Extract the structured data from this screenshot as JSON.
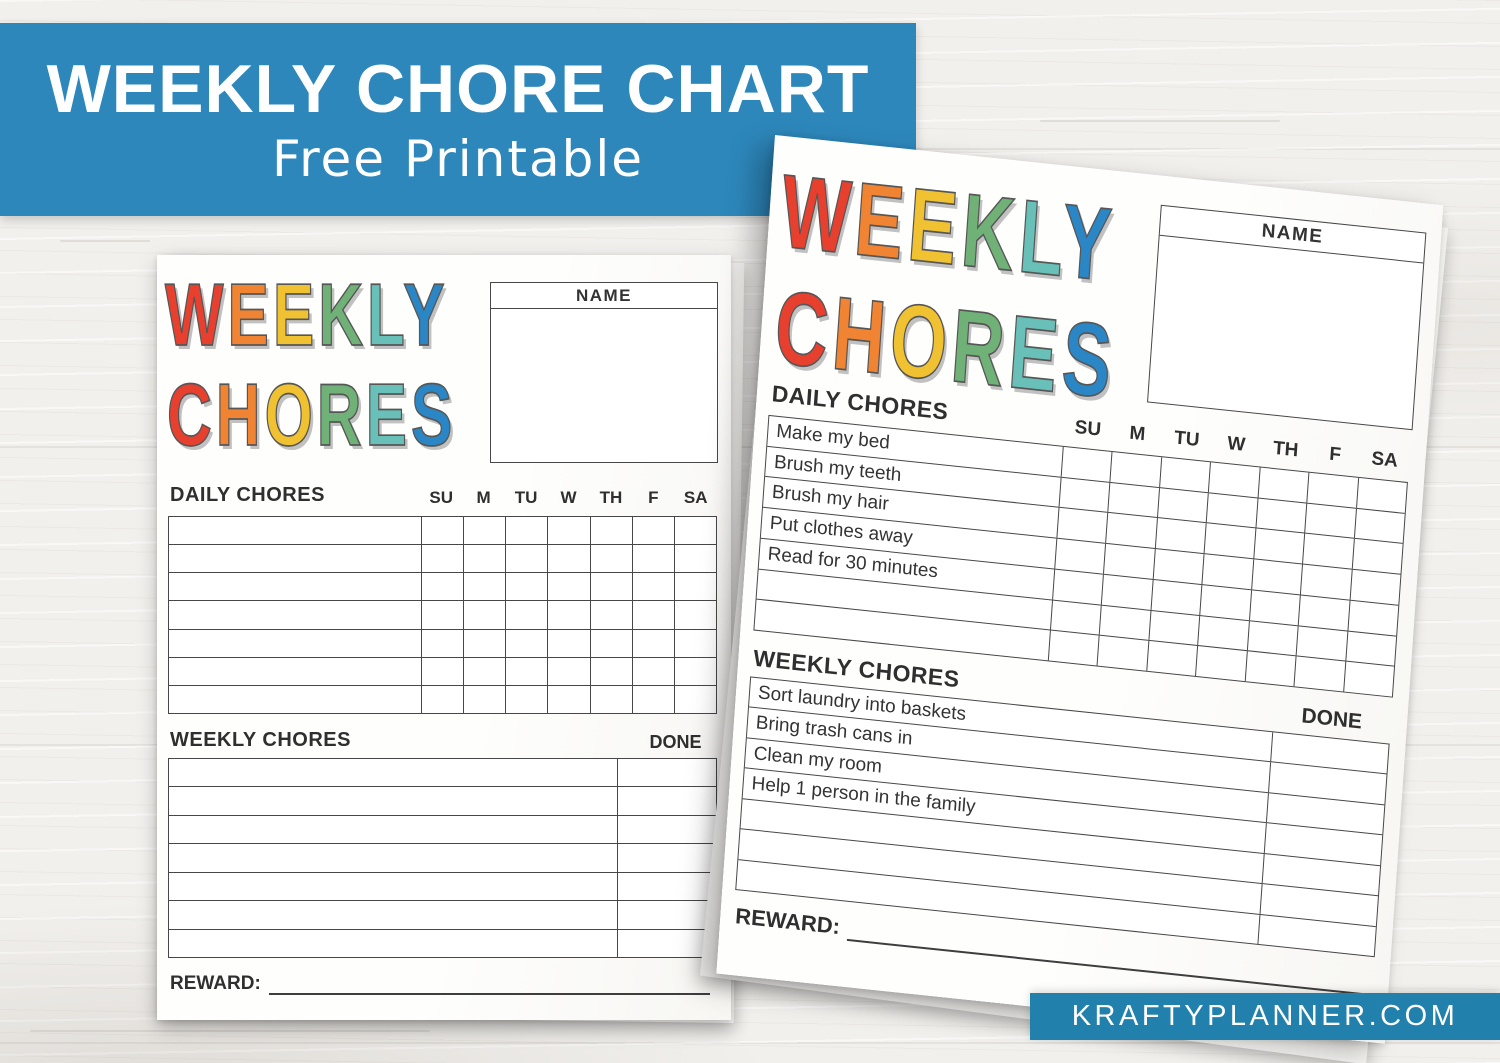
{
  "banner": {
    "title": "WEEKLY CHORE CHART",
    "subtitle": "Free Printable"
  },
  "footer": {
    "site": "KRAFTYPLANNER.COM"
  },
  "logo": {
    "line1": "WEEKLY",
    "line2": "CHORES",
    "colors": [
      "#e8402f",
      "#f18432",
      "#f0c232",
      "#6fb177",
      "#68c0b8",
      "#2b86c5"
    ]
  },
  "page": {
    "name_label": "NAME",
    "daily_label": "DAILY CHORES",
    "weekly_label": "WEEKLY CHORES",
    "done_label": "DONE",
    "reward_label": "REWARD:",
    "days": [
      "SU",
      "M",
      "TU",
      "W",
      "TH",
      "F",
      "SA"
    ]
  },
  "left": {
    "daily_chores": [
      "",
      "",
      "",
      "",
      "",
      "",
      ""
    ],
    "weekly_chores": [
      "",
      "",
      "",
      "",
      "",
      "",
      ""
    ]
  },
  "right": {
    "daily_chores": [
      "Make my bed",
      "Brush my teeth",
      "Brush my hair",
      "Put clothes away",
      "Read for 30 minutes",
      "",
      ""
    ],
    "weekly_chores": [
      "Sort laundry into baskets",
      "Bring trash cans in",
      "Clean my room",
      "Help 1 person in the family",
      "",
      "",
      ""
    ]
  },
  "colors": {
    "banner_bg": "#2d87bb",
    "footer_bg": "#2181ac",
    "line": "#474747",
    "paper": "#fdfdfc"
  }
}
